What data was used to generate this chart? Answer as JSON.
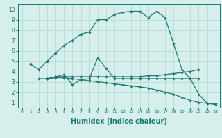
{
  "lines": [
    {
      "x": [
        1,
        2,
        3,
        4,
        5,
        6,
        7,
        8,
        9,
        10,
        11,
        12,
        13,
        14,
        15,
        16,
        17,
        18,
        19,
        20,
        21,
        22,
        23
      ],
      "y": [
        4.7,
        4.2,
        5.0,
        5.8,
        6.5,
        7.0,
        7.6,
        7.8,
        9.0,
        9.0,
        9.5,
        9.7,
        9.8,
        9.8,
        9.2,
        9.8,
        9.2,
        6.7,
        4.2,
        3.3,
        1.8,
        0.9,
        0.9
      ]
    },
    {
      "x": [
        2,
        3,
        4,
        5,
        6,
        7,
        8,
        9,
        10,
        11,
        12,
        13,
        14,
        15,
        16,
        17,
        18,
        19,
        20,
        21
      ],
      "y": [
        3.3,
        3.3,
        3.5,
        3.5,
        3.5,
        3.5,
        3.5,
        3.5,
        3.5,
        3.5,
        3.5,
        3.5,
        3.5,
        3.6,
        3.6,
        3.7,
        3.8,
        3.9,
        4.0,
        4.2
      ]
    },
    {
      "x": [
        3,
        4,
        5,
        6,
        7,
        8,
        9,
        10,
        11,
        12,
        13,
        14,
        15,
        16,
        17,
        18,
        19,
        20,
        21
      ],
      "y": [
        3.3,
        3.5,
        3.7,
        2.7,
        3.2,
        3.3,
        5.3,
        4.3,
        3.3,
        3.3,
        3.3,
        3.3,
        3.3,
        3.3,
        3.3,
        3.3,
        3.3,
        3.3,
        3.3
      ]
    },
    {
      "x": [
        3,
        4,
        5,
        6,
        7,
        8,
        9,
        10,
        11,
        12,
        13,
        14,
        15,
        16,
        17,
        18,
        19,
        20,
        21,
        22,
        23
      ],
      "y": [
        3.3,
        3.4,
        3.4,
        3.3,
        3.2,
        3.1,
        3.0,
        2.9,
        2.8,
        2.7,
        2.6,
        2.5,
        2.4,
        2.2,
        2.0,
        1.8,
        1.5,
        1.2,
        1.0,
        0.9,
        0.8
      ]
    }
  ],
  "line_color": "#1a7a6e",
  "bg_color": "#d6efec",
  "grid_color": "#b5dbd7",
  "xlabel": "Humidex (Indice chaleur)",
  "xlabel_fontsize": 7,
  "xlim": [
    -0.5,
    23.5
  ],
  "ylim": [
    0.5,
    10.5
  ],
  "xticks": [
    0,
    1,
    2,
    3,
    4,
    5,
    6,
    7,
    8,
    9,
    10,
    11,
    12,
    13,
    14,
    15,
    16,
    17,
    18,
    19,
    20,
    21,
    22,
    23
  ],
  "yticks": [
    1,
    2,
    3,
    4,
    5,
    6,
    7,
    8,
    9,
    10
  ],
  "marker": "D",
  "marker_size": 1.8,
  "line_width": 0.9
}
